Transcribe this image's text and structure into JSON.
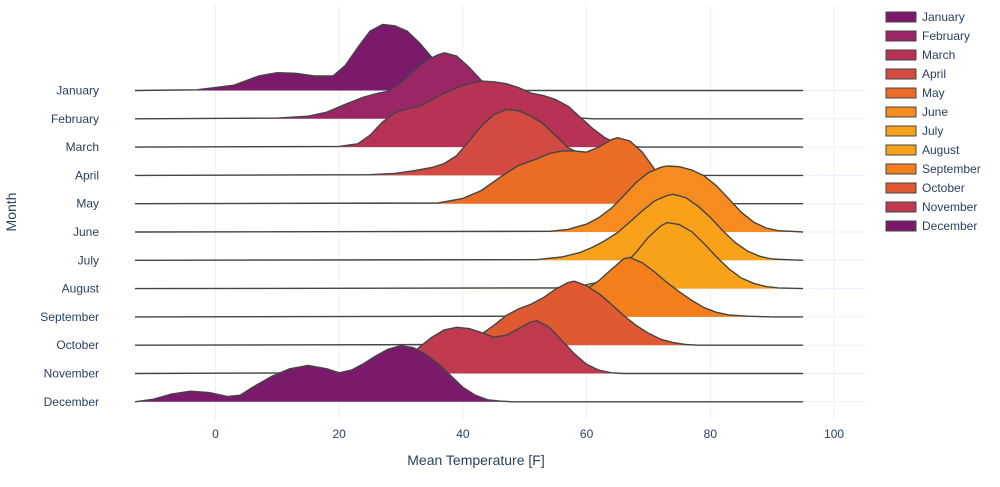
{
  "chart_data": {
    "type": "area",
    "subtype": "ridgeline",
    "title": "",
    "xlabel": "Mean Temperature [F]",
    "ylabel": "Month",
    "xlim": [
      -13,
      105
    ],
    "x_ticks": [
      0,
      20,
      40,
      60,
      80,
      100
    ],
    "grid": true,
    "legend_placement": "top-right",
    "categories": [
      "January",
      "February",
      "March",
      "April",
      "May",
      "June",
      "July",
      "August",
      "September",
      "October",
      "November",
      "December"
    ],
    "series": [
      {
        "name": "January",
        "color": "#7b1a6b",
        "points": [
          [
            -13,
            0
          ],
          [
            -3,
            0.01
          ],
          [
            3,
            0.08
          ],
          [
            7,
            0.22
          ],
          [
            10,
            0.27
          ],
          [
            13,
            0.26
          ],
          [
            16,
            0.22
          ],
          [
            19,
            0.22
          ],
          [
            21,
            0.38
          ],
          [
            23,
            0.65
          ],
          [
            25,
            0.9
          ],
          [
            27,
            1.0
          ],
          [
            29,
            0.98
          ],
          [
            31,
            0.9
          ],
          [
            33,
            0.72
          ],
          [
            35,
            0.5
          ],
          [
            37,
            0.28
          ],
          [
            39,
            0.13
          ],
          [
            41,
            0.04
          ],
          [
            43,
            0.01
          ],
          [
            45,
            0
          ],
          [
            95,
            0
          ]
        ]
      },
      {
        "name": "February",
        "color": "#9b2666",
        "points": [
          [
            -13,
            0
          ],
          [
            10,
            0.01
          ],
          [
            15,
            0.04
          ],
          [
            18,
            0.1
          ],
          [
            21,
            0.22
          ],
          [
            24,
            0.33
          ],
          [
            26,
            0.38
          ],
          [
            28,
            0.42
          ],
          [
            30,
            0.55
          ],
          [
            32,
            0.72
          ],
          [
            34,
            0.88
          ],
          [
            36,
            0.97
          ],
          [
            37,
            1.0
          ],
          [
            39,
            0.95
          ],
          [
            41,
            0.78
          ],
          [
            43,
            0.58
          ],
          [
            45,
            0.38
          ],
          [
            47,
            0.22
          ],
          [
            49,
            0.12
          ],
          [
            51,
            0.06
          ],
          [
            53,
            0.04
          ],
          [
            55,
            0.05
          ],
          [
            57,
            0.04
          ],
          [
            59,
            0.01
          ],
          [
            61,
            0
          ],
          [
            95,
            0
          ]
        ]
      },
      {
        "name": "March",
        "color": "#b73356",
        "points": [
          [
            -13,
            0
          ],
          [
            20,
            0.01
          ],
          [
            23,
            0.05
          ],
          [
            25,
            0.18
          ],
          [
            27,
            0.38
          ],
          [
            29,
            0.52
          ],
          [
            31,
            0.58
          ],
          [
            33,
            0.62
          ],
          [
            35,
            0.72
          ],
          [
            37,
            0.82
          ],
          [
            39,
            0.9
          ],
          [
            41,
            0.96
          ],
          [
            43,
            1.0
          ],
          [
            45,
            0.99
          ],
          [
            47,
            0.96
          ],
          [
            49,
            0.9
          ],
          [
            51,
            0.82
          ],
          [
            53,
            0.78
          ],
          [
            55,
            0.72
          ],
          [
            57,
            0.62
          ],
          [
            59,
            0.45
          ],
          [
            61,
            0.28
          ],
          [
            63,
            0.14
          ],
          [
            65,
            0.05
          ],
          [
            67,
            0.01
          ],
          [
            69,
            0
          ],
          [
            95,
            0
          ]
        ]
      },
      {
        "name": "April",
        "color": "#d24a42",
        "points": [
          [
            -13,
            0
          ],
          [
            25,
            0.01
          ],
          [
            29,
            0.03
          ],
          [
            32,
            0.07
          ],
          [
            35,
            0.12
          ],
          [
            37,
            0.18
          ],
          [
            39,
            0.3
          ],
          [
            41,
            0.52
          ],
          [
            43,
            0.75
          ],
          [
            45,
            0.92
          ],
          [
            47,
            1.0
          ],
          [
            49,
            0.98
          ],
          [
            51,
            0.9
          ],
          [
            53,
            0.78
          ],
          [
            55,
            0.6
          ],
          [
            57,
            0.42
          ],
          [
            59,
            0.33
          ],
          [
            61,
            0.32
          ],
          [
            63,
            0.25
          ],
          [
            65,
            0.14
          ],
          [
            67,
            0.06
          ],
          [
            69,
            0.02
          ],
          [
            71,
            0
          ],
          [
            95,
            0
          ]
        ]
      },
      {
        "name": "May",
        "color": "#ea6c25",
        "points": [
          [
            -13,
            0
          ],
          [
            36,
            0.01
          ],
          [
            40,
            0.08
          ],
          [
            43,
            0.2
          ],
          [
            46,
            0.4
          ],
          [
            49,
            0.58
          ],
          [
            52,
            0.68
          ],
          [
            54,
            0.76
          ],
          [
            56,
            0.8
          ],
          [
            58,
            0.8
          ],
          [
            60,
            0.78
          ],
          [
            62,
            0.86
          ],
          [
            64,
            0.97
          ],
          [
            65,
            1.0
          ],
          [
            67,
            0.95
          ],
          [
            69,
            0.78
          ],
          [
            71,
            0.52
          ],
          [
            73,
            0.28
          ],
          [
            75,
            0.12
          ],
          [
            77,
            0.04
          ],
          [
            79,
            0.01
          ],
          [
            81,
            0
          ],
          [
            95,
            0
          ]
        ]
      },
      {
        "name": "June",
        "color": "#f68c1f",
        "points": [
          [
            -13,
            0
          ],
          [
            54,
            0.01
          ],
          [
            57,
            0.04
          ],
          [
            60,
            0.12
          ],
          [
            62,
            0.22
          ],
          [
            64,
            0.36
          ],
          [
            66,
            0.55
          ],
          [
            68,
            0.75
          ],
          [
            70,
            0.9
          ],
          [
            72,
            0.98
          ],
          [
            73,
            1.0
          ],
          [
            75,
            0.99
          ],
          [
            77,
            0.94
          ],
          [
            79,
            0.85
          ],
          [
            81,
            0.7
          ],
          [
            83,
            0.5
          ],
          [
            85,
            0.3
          ],
          [
            87,
            0.15
          ],
          [
            89,
            0.06
          ],
          [
            91,
            0.02
          ],
          [
            93,
            0.01
          ],
          [
            95,
            0
          ]
        ]
      },
      {
        "name": "July",
        "color": "#f9a11b",
        "points": [
          [
            -13,
            0
          ],
          [
            52,
            0.01
          ],
          [
            56,
            0.05
          ],
          [
            59,
            0.12
          ],
          [
            61,
            0.2
          ],
          [
            63,
            0.3
          ],
          [
            65,
            0.42
          ],
          [
            67,
            0.58
          ],
          [
            69,
            0.75
          ],
          [
            71,
            0.9
          ],
          [
            73,
            0.98
          ],
          [
            74,
            1.0
          ],
          [
            76,
            0.95
          ],
          [
            78,
            0.82
          ],
          [
            80,
            0.65
          ],
          [
            82,
            0.45
          ],
          [
            84,
            0.27
          ],
          [
            86,
            0.14
          ],
          [
            88,
            0.06
          ],
          [
            90,
            0.02
          ],
          [
            92,
            0.01
          ],
          [
            95,
            0
          ]
        ]
      },
      {
        "name": "August",
        "color": "#f8a11b",
        "points": [
          [
            -13,
            0
          ],
          [
            55,
            0.01
          ],
          [
            59,
            0.04
          ],
          [
            62,
            0.1
          ],
          [
            64,
            0.2
          ],
          [
            66,
            0.35
          ],
          [
            68,
            0.55
          ],
          [
            70,
            0.78
          ],
          [
            72,
            0.95
          ],
          [
            73,
            1.0
          ],
          [
            75,
            0.97
          ],
          [
            77,
            0.86
          ],
          [
            79,
            0.68
          ],
          [
            81,
            0.48
          ],
          [
            83,
            0.3
          ],
          [
            85,
            0.16
          ],
          [
            87,
            0.08
          ],
          [
            89,
            0.03
          ],
          [
            91,
            0.01
          ],
          [
            95,
            0
          ]
        ]
      },
      {
        "name": "September",
        "color": "#f27e1c",
        "points": [
          [
            -13,
            0
          ],
          [
            50,
            0.01
          ],
          [
            52,
            0.12
          ],
          [
            54,
            0.27
          ],
          [
            56,
            0.34
          ],
          [
            58,
            0.36
          ],
          [
            60,
            0.42
          ],
          [
            62,
            0.55
          ],
          [
            64,
            0.72
          ],
          [
            66,
            0.88
          ],
          [
            67,
            0.9
          ],
          [
            69,
            0.82
          ],
          [
            71,
            0.68
          ],
          [
            73,
            0.52
          ],
          [
            75,
            0.38
          ],
          [
            77,
            0.25
          ],
          [
            79,
            0.14
          ],
          [
            81,
            0.07
          ],
          [
            83,
            0.03
          ],
          [
            86,
            0.01
          ],
          [
            90,
            0
          ],
          [
            95,
            0
          ]
        ]
      },
      {
        "name": "October",
        "color": "#e05a31",
        "points": [
          [
            -13,
            0
          ],
          [
            38,
            0.01
          ],
          [
            42,
            0.1
          ],
          [
            45,
            0.3
          ],
          [
            47,
            0.45
          ],
          [
            49,
            0.55
          ],
          [
            51,
            0.62
          ],
          [
            53,
            0.72
          ],
          [
            55,
            0.85
          ],
          [
            57,
            0.95
          ],
          [
            58,
            0.97
          ],
          [
            60,
            0.9
          ],
          [
            62,
            0.78
          ],
          [
            64,
            0.62
          ],
          [
            66,
            0.45
          ],
          [
            68,
            0.3
          ],
          [
            70,
            0.18
          ],
          [
            72,
            0.09
          ],
          [
            74,
            0.04
          ],
          [
            76,
            0.01
          ],
          [
            78,
            0
          ],
          [
            95,
            0
          ]
        ]
      },
      {
        "name": "November",
        "color": "#bf3a4f",
        "points": [
          [
            -13,
            0
          ],
          [
            20,
            0.01
          ],
          [
            25,
            0.05
          ],
          [
            28,
            0.12
          ],
          [
            31,
            0.25
          ],
          [
            33,
            0.4
          ],
          [
            35,
            0.55
          ],
          [
            37,
            0.66
          ],
          [
            39,
            0.7
          ],
          [
            41,
            0.68
          ],
          [
            43,
            0.62
          ],
          [
            45,
            0.55
          ],
          [
            47,
            0.58
          ],
          [
            49,
            0.68
          ],
          [
            51,
            0.78
          ],
          [
            52,
            0.8
          ],
          [
            54,
            0.7
          ],
          [
            56,
            0.5
          ],
          [
            58,
            0.3
          ],
          [
            60,
            0.14
          ],
          [
            62,
            0.05
          ],
          [
            64,
            0.01
          ],
          [
            66,
            0
          ],
          [
            95,
            0
          ]
        ]
      },
      {
        "name": "December",
        "color": "#7b1a6b",
        "points": [
          [
            -13,
            0
          ],
          [
            -10,
            0.04
          ],
          [
            -7,
            0.12
          ],
          [
            -4,
            0.16
          ],
          [
            -1,
            0.14
          ],
          [
            2,
            0.08
          ],
          [
            4,
            0.1
          ],
          [
            6,
            0.22
          ],
          [
            9,
            0.38
          ],
          [
            12,
            0.5
          ],
          [
            15,
            0.55
          ],
          [
            18,
            0.5
          ],
          [
            20,
            0.44
          ],
          [
            22,
            0.48
          ],
          [
            24,
            0.58
          ],
          [
            26,
            0.7
          ],
          [
            28,
            0.8
          ],
          [
            30,
            0.85
          ],
          [
            32,
            0.82
          ],
          [
            34,
            0.72
          ],
          [
            36,
            0.58
          ],
          [
            38,
            0.4
          ],
          [
            40,
            0.22
          ],
          [
            42,
            0.1
          ],
          [
            44,
            0.03
          ],
          [
            46,
            0.01
          ],
          [
            48,
            0
          ],
          [
            95,
            0
          ]
        ]
      }
    ]
  }
}
